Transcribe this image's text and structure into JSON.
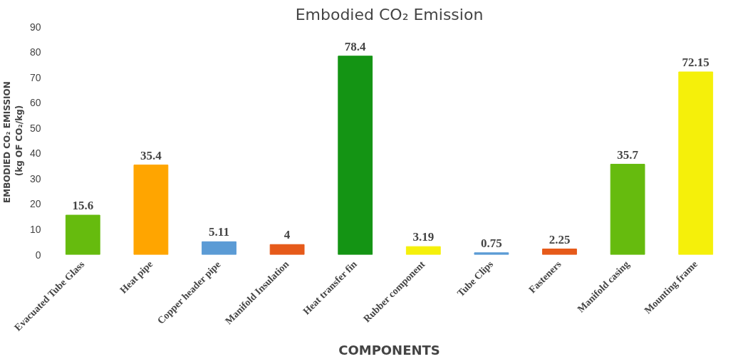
{
  "chart_data": {
    "type": "bar",
    "title": "Embodied CO₂ Emission",
    "xlabel": "COMPONENTS",
    "ylabel": "EMBODIED CO₂  EMISSION\n(kg OF CO₂/kg)",
    "categories": [
      "Evacuated Tube Glass",
      "Heat pipe",
      "Copper header pipe",
      "Manifold Insulation",
      "Heat transfer fin",
      "Rubber component",
      "Tube Clips",
      "Fasteners",
      "Manifold casing",
      "Mounting frame"
    ],
    "values": [
      15.6,
      35.4,
      5.11,
      4,
      78.4,
      3.19,
      0.75,
      2.25,
      35.7,
      72.15
    ],
    "colors": [
      "#66bb0e",
      "#ffa500",
      "#5b9bd5",
      "#e65a1a",
      "#149414",
      "#f5f00a",
      "#5b9bd5",
      "#e65a1a",
      "#66bb0e",
      "#f5f00a"
    ],
    "ylim": [
      0,
      90
    ],
    "yticks": [
      0,
      10,
      20,
      30,
      40,
      50,
      60,
      70,
      80,
      90
    ],
    "grid": false,
    "data_labels": true
  }
}
